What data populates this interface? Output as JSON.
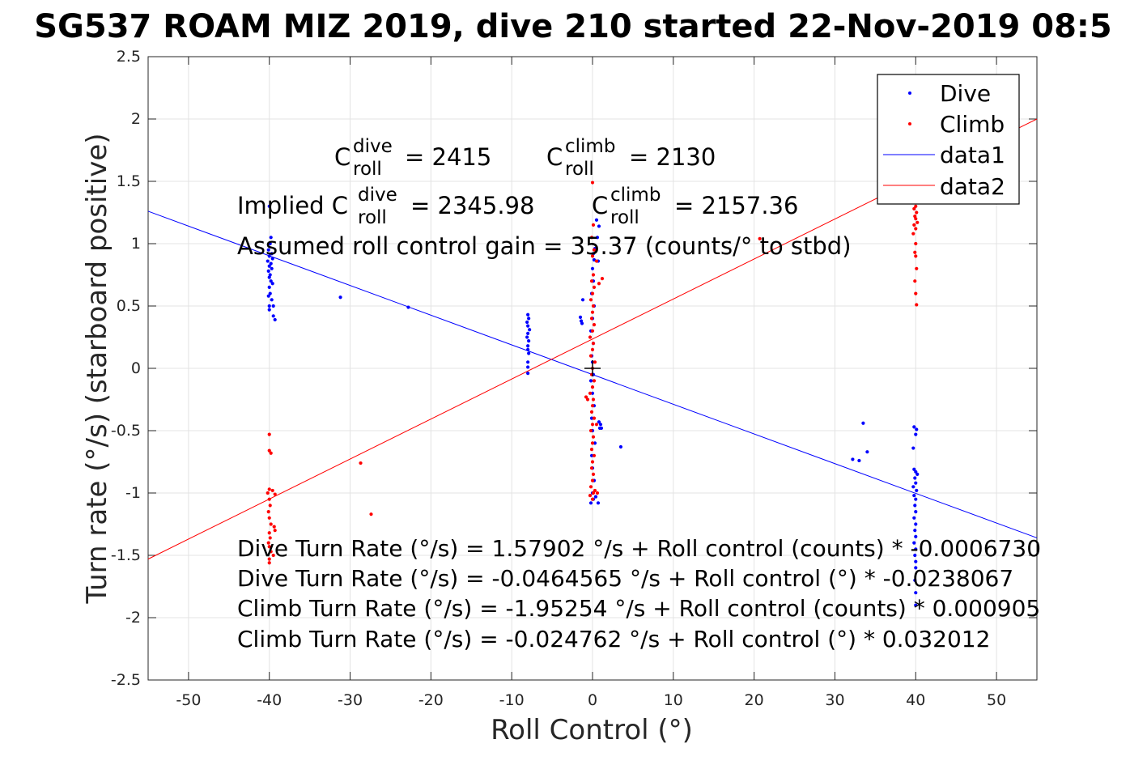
{
  "chart_data": {
    "type": "scatter",
    "title": "SG537 ROAM MIZ 2019, dive 210 started 22-Nov-2019 08:5",
    "xlabel": "Roll Control (°)",
    "ylabel": "Turn rate (°/s) (starboard positive)",
    "xlim": [
      -55,
      55
    ],
    "ylim": [
      -2.5,
      2.5
    ],
    "xticks": [
      -50,
      -40,
      -30,
      -20,
      -10,
      0,
      10,
      20,
      30,
      40,
      50
    ],
    "yticks": [
      -2.5,
      -2,
      -1.5,
      -1,
      -0.5,
      0,
      0.5,
      1,
      1.5,
      2,
      2.5
    ],
    "xtick_labels": [
      "-50",
      "-40",
      "-30",
      "-20",
      "-10",
      "0",
      "10",
      "20",
      "30",
      "40",
      "50"
    ],
    "ytick_labels": [
      "-2.5",
      "-2",
      "-1.5",
      "-1",
      "-0.5",
      "0",
      "0.5",
      "1",
      "1.5",
      "2",
      "2.5"
    ],
    "grid": true,
    "legend_position": "top-right",
    "colors": {
      "dive": "#0000ff",
      "climb": "#ff0000",
      "axes": "#000000",
      "grid": "#e3e3e3"
    },
    "series": [
      {
        "name": "Dive",
        "kind": "points",
        "color": "#0000ff",
        "points": [
          [
            -40,
            1.3
          ],
          [
            -39.8,
            1.05
          ],
          [
            -39.9,
            1.0
          ],
          [
            -40.1,
            0.95
          ],
          [
            -39.7,
            0.92
          ],
          [
            -40,
            0.9
          ],
          [
            -39.6,
            0.88
          ],
          [
            -40.2,
            0.86
          ],
          [
            -39.8,
            0.84
          ],
          [
            -40,
            0.82
          ],
          [
            -39.7,
            0.8
          ],
          [
            -40.1,
            0.78
          ],
          [
            -39.9,
            0.75
          ],
          [
            -40,
            0.73
          ],
          [
            -39.8,
            0.7
          ],
          [
            -39.6,
            0.68
          ],
          [
            -40,
            0.65
          ],
          [
            -39.9,
            0.6
          ],
          [
            -40.1,
            0.58
          ],
          [
            -39.7,
            0.55
          ],
          [
            -40,
            0.5
          ],
          [
            -39.5,
            0.5
          ],
          [
            -40,
            0.47
          ],
          [
            -39.5,
            0.42
          ],
          [
            -39.3,
            0.39
          ],
          [
            -31.2,
            0.57
          ],
          [
            -22.8,
            0.49
          ],
          [
            -8,
            0.43
          ],
          [
            -7.9,
            0.4
          ],
          [
            -8.1,
            0.37
          ],
          [
            -8,
            0.34
          ],
          [
            -7.8,
            0.31
          ],
          [
            -8,
            0.28
          ],
          [
            -8.1,
            0.25
          ],
          [
            -7.9,
            0.22
          ],
          [
            -8,
            0.18
          ],
          [
            -8,
            0.15
          ],
          [
            -7.9,
            0.12
          ],
          [
            -8,
            0.05
          ],
          [
            -8,
            0.01
          ],
          [
            -8,
            -0.04
          ],
          [
            -1.2,
            0.55
          ],
          [
            -1.4,
            0.38
          ],
          [
            -1.5,
            0.41
          ],
          [
            -1.3,
            0.36
          ],
          [
            0.5,
            1.19
          ],
          [
            0.8,
            1.14
          ],
          [
            0.6,
            1.05
          ],
          [
            0.3,
            0.96
          ],
          [
            0.1,
            0.92
          ],
          [
            0.2,
            0.87
          ],
          [
            0.7,
            0.86
          ],
          [
            0,
            0.8
          ],
          [
            0.1,
            0.7
          ],
          [
            -0.1,
            0.6
          ],
          [
            0.2,
            0.5
          ],
          [
            0,
            0.4
          ],
          [
            -0.2,
            0.3
          ],
          [
            0.1,
            0.2
          ],
          [
            -0.1,
            0.1
          ],
          [
            0,
            0.05
          ],
          [
            0.1,
            -0.05
          ],
          [
            -0.2,
            -0.1
          ],
          [
            0,
            -0.2
          ],
          [
            0.2,
            -0.3
          ],
          [
            -0.1,
            -0.4
          ],
          [
            0,
            -0.5
          ],
          [
            0.3,
            -0.6
          ],
          [
            -0.1,
            -0.7
          ],
          [
            0,
            -0.8
          ],
          [
            0.2,
            -0.9
          ],
          [
            0,
            -1.0
          ],
          [
            0.1,
            -1.05
          ],
          [
            -0.2,
            -1.08
          ],
          [
            0.4,
            -1.03
          ],
          [
            0.7,
            -1.08
          ],
          [
            1.0,
            -0.45
          ],
          [
            0.8,
            -0.43
          ],
          [
            1.1,
            -0.48
          ],
          [
            0.9,
            -0.48
          ],
          [
            3.5,
            -0.63
          ],
          [
            33.5,
            -0.44
          ],
          [
            32.2,
            -0.73
          ],
          [
            33.0,
            -0.74
          ],
          [
            34.0,
            -0.67
          ],
          [
            39.8,
            -0.47
          ],
          [
            40.1,
            -0.49
          ],
          [
            40,
            -0.53
          ],
          [
            39.7,
            -0.64
          ],
          [
            39.8,
            -0.81
          ],
          [
            40,
            -0.83
          ],
          [
            40.2,
            -0.85
          ],
          [
            39.9,
            -0.88
          ],
          [
            40,
            -0.92
          ],
          [
            39.7,
            -0.95
          ],
          [
            40.1,
            -0.98
          ],
          [
            39.8,
            -1.02
          ],
          [
            40,
            -1.05
          ],
          [
            39.9,
            -1.1
          ],
          [
            40,
            -1.15
          ],
          [
            39.8,
            -1.2
          ],
          [
            40,
            -1.25
          ],
          [
            39.9,
            -1.3
          ],
          [
            40,
            -1.35
          ],
          [
            39.8,
            -1.4
          ],
          [
            40,
            -1.45
          ],
          [
            39.9,
            -1.5
          ],
          [
            40,
            -1.55
          ],
          [
            40,
            -1.6
          ],
          [
            39.9,
            -1.7
          ],
          [
            40,
            -1.8
          ],
          [
            40,
            -1.9
          ]
        ]
      },
      {
        "name": "Climb",
        "kind": "points",
        "color": "#ff0000",
        "points": [
          [
            -40,
            -0.53
          ],
          [
            -40,
            -0.66
          ],
          [
            -39.8,
            -0.68
          ],
          [
            -40,
            -0.97
          ],
          [
            -39.6,
            -0.98
          ],
          [
            -40.2,
            -1.0
          ],
          [
            -39.3,
            -1.01
          ],
          [
            -40,
            -1.05
          ],
          [
            -39.9,
            -1.1
          ],
          [
            -40.1,
            -1.15
          ],
          [
            -40,
            -1.2
          ],
          [
            -39.8,
            -1.25
          ],
          [
            -39.4,
            -1.27
          ],
          [
            -39.3,
            -1.3
          ],
          [
            -40,
            -1.32
          ],
          [
            -39.9,
            -1.36
          ],
          [
            -40.1,
            -1.4
          ],
          [
            -40,
            -1.43
          ],
          [
            -39.8,
            -1.47
          ],
          [
            -39.5,
            -1.5
          ],
          [
            -40,
            -1.53
          ],
          [
            -40,
            -1.56
          ],
          [
            -28.7,
            -0.76
          ],
          [
            -27.4,
            -1.17
          ],
          [
            0,
            1.49
          ],
          [
            0.1,
            1.15
          ],
          [
            -0.1,
            1.05
          ],
          [
            0.2,
            0.95
          ],
          [
            0,
            0.9
          ],
          [
            0.5,
            0.86
          ],
          [
            0.1,
            0.75
          ],
          [
            -0.1,
            0.7
          ],
          [
            0.2,
            0.65
          ],
          [
            0,
            0.6
          ],
          [
            -0.2,
            0.55
          ],
          [
            0.1,
            0.5
          ],
          [
            0,
            0.45
          ],
          [
            -0.1,
            0.4
          ],
          [
            0.2,
            0.35
          ],
          [
            0,
            0.3
          ],
          [
            -0.3,
            0.25
          ],
          [
            0.1,
            0.2
          ],
          [
            0,
            0.15
          ],
          [
            -0.2,
            0.1
          ],
          [
            0.3,
            0.05
          ],
          [
            0,
            0
          ],
          [
            -0.1,
            -0.05
          ],
          [
            0.2,
            -0.1
          ],
          [
            0,
            -0.15
          ],
          [
            -0.3,
            -0.2
          ],
          [
            0.1,
            -0.25
          ],
          [
            0,
            -0.3
          ],
          [
            -0.1,
            -0.35
          ],
          [
            0.2,
            -0.4
          ],
          [
            0,
            -0.45
          ],
          [
            -0.2,
            -0.5
          ],
          [
            0.1,
            -0.55
          ],
          [
            0,
            -0.6
          ],
          [
            -0.1,
            -0.65
          ],
          [
            0.2,
            -0.7
          ],
          [
            0,
            -0.75
          ],
          [
            -0.1,
            -0.8
          ],
          [
            0.1,
            -0.85
          ],
          [
            0,
            -0.9
          ],
          [
            -0.2,
            -0.95
          ],
          [
            0.1,
            -1.0
          ],
          [
            0,
            -1.05
          ],
          [
            0.3,
            -0.98
          ],
          [
            -0.3,
            -1.02
          ],
          [
            0.6,
            -1.0
          ],
          [
            0.8,
            0.68
          ],
          [
            1.2,
            0.72
          ],
          [
            -0.8,
            -0.23
          ],
          [
            -0.6,
            -0.25
          ],
          [
            0.5,
            -0.45
          ],
          [
            20.7,
            1.04
          ],
          [
            40,
            1.3
          ],
          [
            39.8,
            1.28
          ],
          [
            40.1,
            1.25
          ],
          [
            39.9,
            1.22
          ],
          [
            40,
            1.2
          ],
          [
            40.2,
            1.17
          ],
          [
            39.8,
            1.15
          ],
          [
            40,
            1.12
          ],
          [
            39.7,
            1.08
          ],
          [
            40,
            1.0
          ],
          [
            39.9,
            0.93
          ],
          [
            40,
            0.9
          ],
          [
            40.1,
            0.8
          ],
          [
            39.9,
            0.7
          ],
          [
            40,
            0.6
          ],
          [
            40.1,
            0.51
          ]
        ]
      },
      {
        "name": "data1",
        "kind": "line",
        "color": "#0000ff",
        "x": [
          -55,
          55
        ],
        "y": [
          1.26,
          -1.36
        ]
      },
      {
        "name": "data2",
        "kind": "line",
        "color": "#ff0000",
        "x": [
          -55,
          55
        ],
        "y": [
          -1.53,
          2.0
        ]
      }
    ],
    "center_marker": {
      "x": 0,
      "y": 0,
      "symbol": "+",
      "color": "#000000"
    },
    "annotations": {
      "line1": {
        "dive_value": "= 2415",
        "climb_value": "= 2130"
      },
      "line2": {
        "prefix": "Implied C",
        "dive_value": "= 2345.98",
        "climb_value": "= 2157.36"
      },
      "symbol": {
        "base": "C",
        "sub": "roll",
        "sup_dive": "dive",
        "sup_climb": "climb"
      },
      "gain": "Assumed roll control gain = 35.37 (counts/° to stbd)",
      "regressions": [
        "Dive Turn Rate (°/s) = 1.57902 °/s + Roll control (counts) * -0.0006730",
        "Dive Turn Rate (°/s) = -0.0464565 °/s + Roll control (°) * -0.0238067",
        "Climb Turn Rate (°/s) = -1.95254 °/s + Roll control (counts) * 0.000905",
        "Climb Turn Rate (°/s) = -0.024762 °/s + Roll control (°) * 0.032012"
      ]
    }
  }
}
